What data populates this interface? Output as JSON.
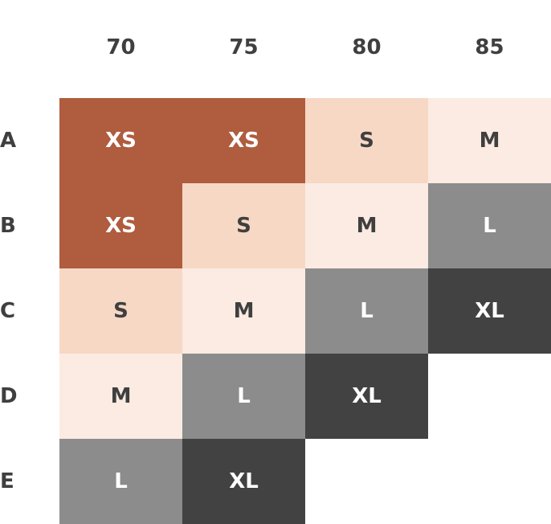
{
  "chart_data": {
    "type": "heatmap",
    "columns": [
      "70",
      "75",
      "80",
      "85"
    ],
    "rows": [
      "A",
      "B",
      "C",
      "D",
      "E"
    ],
    "values": [
      [
        "XS",
        "XS",
        "S",
        "M"
      ],
      [
        "XS",
        "S",
        "M",
        "L"
      ],
      [
        "S",
        "M",
        "L",
        "XL"
      ],
      [
        "M",
        "L",
        "XL",
        null
      ],
      [
        "L",
        "XL",
        null,
        null
      ]
    ],
    "colors": {
      "XS": {
        "bg": "#b05c3e",
        "fg": "#ffffff"
      },
      "S": {
        "bg": "#f7d8c5",
        "fg": "#3f3f3f"
      },
      "M": {
        "bg": "#fbebe2",
        "fg": "#3f3f3f"
      },
      "L": {
        "bg": "#8c8c8c",
        "fg": "#ffffff"
      },
      "XL": {
        "bg": "#424242",
        "fg": "#ffffff"
      }
    }
  }
}
